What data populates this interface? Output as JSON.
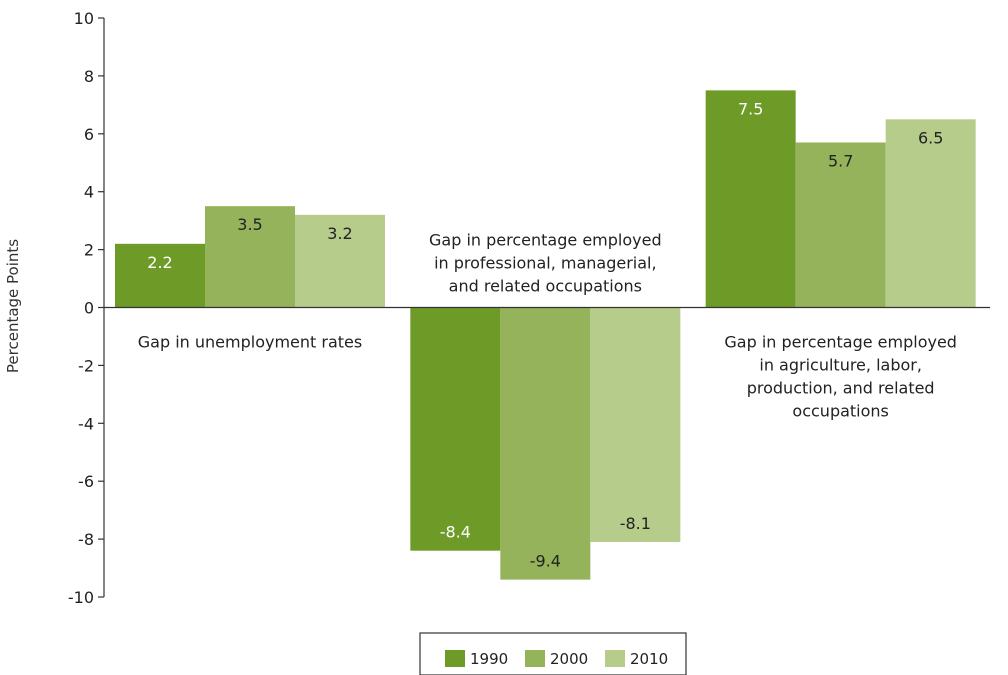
{
  "chart_data": {
    "type": "bar",
    "ylabel": "Percentage Points",
    "ylim": [
      -10,
      10
    ],
    "yticks": [
      10,
      8,
      6,
      4,
      2,
      0,
      -2,
      -4,
      -6,
      -8,
      -10
    ],
    "grid": false,
    "legend_position": "bottom-center",
    "categories": [
      [
        "Gap in unemployment rates"
      ],
      [
        "Gap in percentage employed",
        "in professional, managerial,",
        "and related occupations"
      ],
      [
        "Gap in percentage employed",
        "in agriculture, labor,",
        "production, and related",
        "occupations"
      ]
    ],
    "series": [
      {
        "name": "1990",
        "color": "#6e9b27",
        "label_color": "#ffffff",
        "values": [
          2.2,
          -8.4,
          7.5
        ]
      },
      {
        "name": "2000",
        "color": "#94b35a",
        "label_color": "#222222",
        "values": [
          3.5,
          -9.4,
          5.7
        ]
      },
      {
        "name": "2010",
        "color": "#b6cc8a",
        "label_color": "#222222",
        "values": [
          3.2,
          -8.1,
          6.5
        ]
      }
    ]
  }
}
